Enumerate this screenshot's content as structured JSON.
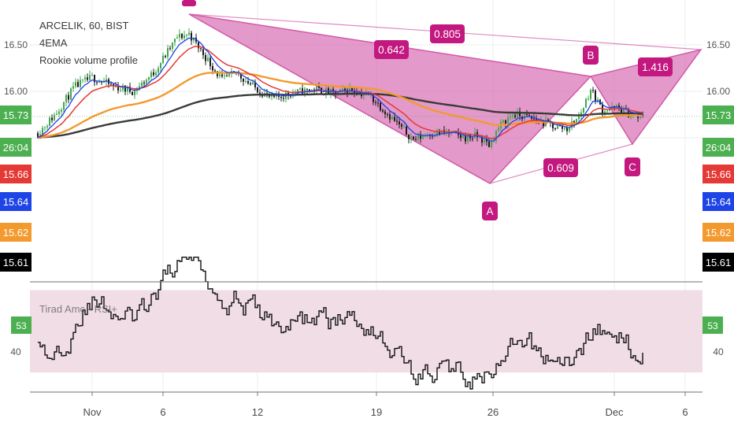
{
  "header": {
    "symbol_line": "ARCELIK, 60, BIST",
    "indicator_1": "4EMA",
    "indicator_2": "Rookie volume profile"
  },
  "rsi_panel": {
    "title": "Tirad Amc - RSI+"
  },
  "colors": {
    "pattern_fill": "#d25aa8",
    "pattern_label_bg": "#c2187f",
    "ema_red": "#e53935",
    "ema_blue": "#1e44e6",
    "ema_orange": "#f39a2f",
    "ema_black": "#3a3a3a",
    "candle_up": "#3ea84b",
    "candle_down": "#1a1a1a",
    "last_price_bg": "#4caf50",
    "rsi_band": "#f1dde6"
  },
  "chart_data": {
    "type": "candlestick",
    "x_axis": {
      "ticks": [
        "Nov",
        "6",
        "12",
        "19",
        "26",
        "Dec",
        "6"
      ]
    },
    "y_axis": {
      "ylim": [
        15.47,
        16.72
      ],
      "ticks": [
        16.5,
        16.0
      ]
    },
    "price_labels": [
      {
        "text": "15.73",
        "bg": "#4caf50",
        "fg": "#ffffff"
      },
      {
        "text": "26:04",
        "bg": "#4caf50",
        "fg": "#ffffff"
      },
      {
        "text": "15.66",
        "bg": "#e53935",
        "fg": "#ffffff"
      },
      {
        "text": "15.64",
        "bg": "#1e44e6",
        "fg": "#ffffff"
      },
      {
        "text": "15.62",
        "bg": "#f39a2f",
        "fg": "#ffffff"
      },
      {
        "text": "15.61",
        "bg": "#000000",
        "fg": "#ffffff"
      }
    ],
    "harmonic_pattern": {
      "points": [
        "A",
        "B",
        "C"
      ],
      "ratios": [
        "0.642",
        "0.805",
        "0.609",
        "1.416"
      ]
    },
    "rsi": {
      "ylim": [
        18,
        88
      ],
      "ticks": [
        53,
        40
      ],
      "current": "53",
      "band": [
        30,
        70
      ]
    }
  }
}
